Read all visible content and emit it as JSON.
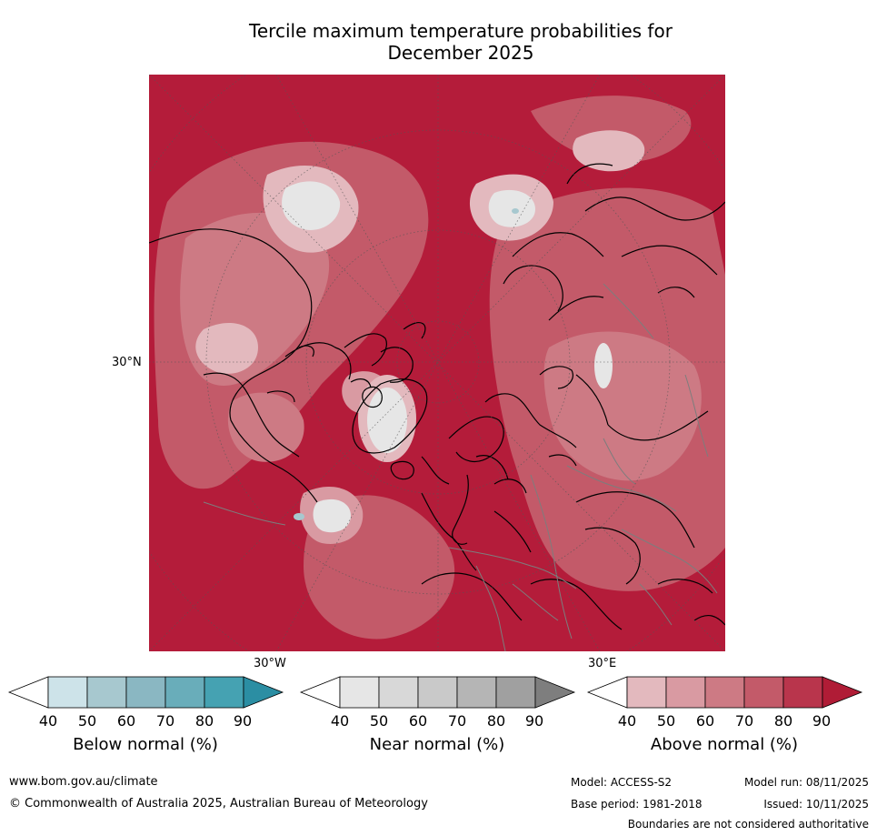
{
  "title_line1": "Tercile maximum temperature probabilities for",
  "title_line2": "December 2025",
  "map": {
    "latitude_label": "30°N",
    "longitude_label_left": "30°W",
    "longitude_label_right": "30°E",
    "dominant_category": "Above normal",
    "dominant_color": "#b41c3a"
  },
  "colorbars": [
    {
      "label": "Below normal (%)",
      "ticks": [
        "40",
        "50",
        "60",
        "70",
        "80",
        "90"
      ],
      "colors": [
        "#ffffff",
        "#cde3e9",
        "#a7c8cf",
        "#8ab7c2",
        "#69adba",
        "#45a2b2",
        "#2b8ea3"
      ]
    },
    {
      "label": "Near normal (%)",
      "ticks": [
        "40",
        "50",
        "60",
        "70",
        "80",
        "90"
      ],
      "colors": [
        "#ffffff",
        "#e6e6e6",
        "#d8d8d8",
        "#c9c9c9",
        "#b5b5b5",
        "#a0a0a0",
        "#7e7e7e"
      ]
    },
    {
      "label": "Above normal (%)",
      "ticks": [
        "40",
        "50",
        "60",
        "70",
        "80",
        "90"
      ],
      "colors": [
        "#ffffff",
        "#e3b9be",
        "#d99aa2",
        "#cd7a84",
        "#c35a69",
        "#b9354c",
        "#b01c36"
      ]
    }
  ],
  "footer": {
    "website": "www.bom.gov.au/climate",
    "copyright": "© Commonwealth of Australia 2025, Australian Bureau of Meteorology",
    "model": "Model: ACCESS-S2",
    "model_run": "Model run: 08/11/2025",
    "base_period": "Base period: 1981-2018",
    "issued": "Issued: 10/11/2025",
    "disclaimer": "Boundaries are not considered authoritative"
  }
}
